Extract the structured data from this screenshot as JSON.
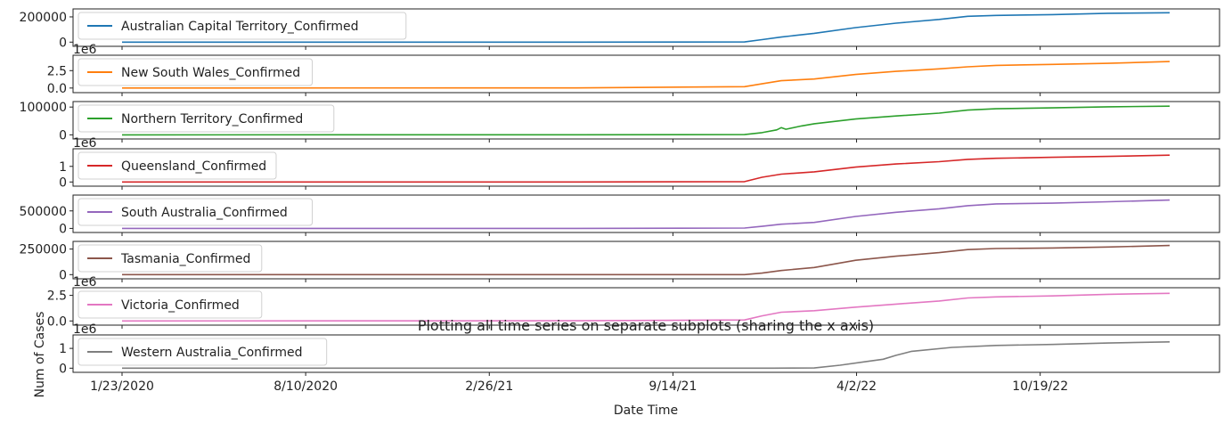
{
  "chart_data": {
    "type": "line",
    "title": "Plotting all time series on separate subplots (sharing the x axis)",
    "xlabel": "Date Time",
    "ylabel": "Num of Cases",
    "x_ticks": [
      "1/23/2020",
      "8/10/2020",
      "2/26/21",
      "9/14/21",
      "4/2/22",
      "10/19/22"
    ],
    "x_tick_dates": [
      "2020-01-23",
      "2020-08-10",
      "2021-02-26",
      "2021-09-14",
      "2022-04-02",
      "2022-10-19"
    ],
    "x_range": [
      "2020-01-23",
      "2023-03-09"
    ],
    "legend_position": "upper left",
    "series": [
      {
        "name": "Australian Capital Territory_Confirmed",
        "color": "#1f77b4",
        "offset_label": "",
        "ylim": [
          -5000,
          235000
        ],
        "y_ticks": [
          {
            "value": 0,
            "label": "0"
          },
          {
            "value": 200000,
            "label": "200000"
          }
        ],
        "dates": [
          "2020-01-23",
          "2021-06-01",
          "2021-12-01",
          "2021-12-20",
          "2022-01-10",
          "2022-02-15",
          "2022-04-01",
          "2022-05-15",
          "2022-07-01",
          "2022-08-01",
          "2022-09-01",
          "2022-11-01",
          "2023-01-01",
          "2023-03-09"
        ],
        "values": [
          0,
          60,
          1500,
          20000,
          40000,
          70000,
          115000,
          150000,
          180000,
          205000,
          212000,
          218000,
          229000,
          233000
        ]
      },
      {
        "name": "New South Wales_Confirmed",
        "color": "#ff7f0e",
        "offset_label": "1e6",
        "ylim": [
          -0.15,
          4.2
        ],
        "y_ticks": [
          {
            "value": 0,
            "label": "0.0"
          },
          {
            "value": 2.5,
            "label": "2.5"
          }
        ],
        "dates": [
          "2020-01-23",
          "2021-06-01",
          "2021-12-01",
          "2021-12-20",
          "2022-01-10",
          "2022-02-15",
          "2022-04-01",
          "2022-05-15",
          "2022-07-01",
          "2022-08-01",
          "2022-09-01",
          "2022-11-01",
          "2023-01-01",
          "2023-03-09"
        ],
        "values": [
          0,
          0.01,
          0.2,
          0.6,
          1.05,
          1.3,
          1.95,
          2.4,
          2.75,
          3.05,
          3.25,
          3.4,
          3.55,
          3.8
        ]
      },
      {
        "name": "Northern Territory_Confirmed",
        "color": "#2ca02c",
        "offset_label": "",
        "ylim": [
          -2000,
          107000
        ],
        "y_ticks": [
          {
            "value": 0,
            "label": "0"
          },
          {
            "value": 100000,
            "label": "100000"
          }
        ],
        "dates": [
          "2020-01-23",
          "2021-06-01",
          "2021-12-01",
          "2021-12-20",
          "2022-01-05",
          "2022-01-10",
          "2022-01-15",
          "2022-02-01",
          "2022-02-15",
          "2022-04-01",
          "2022-05-15",
          "2022-07-01",
          "2022-08-01",
          "2022-09-01",
          "2022-11-01",
          "2023-01-01",
          "2023-03-09"
        ],
        "values": [
          0,
          100,
          1000,
          8000,
          18000,
          26000,
          20000,
          32000,
          40000,
          57000,
          68000,
          78000,
          89000,
          94000,
          97000,
          101000,
          103000
        ]
      },
      {
        "name": "Queensland_Confirmed",
        "color": "#d62728",
        "offset_label": "1e6",
        "ylim": [
          -0.04,
          1.9
        ],
        "y_ticks": [
          {
            "value": 0,
            "label": "0"
          },
          {
            "value": 1,
            "label": "1"
          }
        ],
        "dates": [
          "2020-01-23",
          "2021-06-01",
          "2021-12-01",
          "2021-12-20",
          "2022-01-10",
          "2022-02-15",
          "2022-04-01",
          "2022-05-15",
          "2022-07-01",
          "2022-08-01",
          "2022-09-01",
          "2022-11-01",
          "2023-01-01",
          "2023-03-09"
        ],
        "values": [
          0,
          0.002,
          0.02,
          0.3,
          0.5,
          0.65,
          0.95,
          1.15,
          1.3,
          1.45,
          1.52,
          1.58,
          1.64,
          1.72
        ]
      },
      {
        "name": "South Australia_Confirmed",
        "color": "#9467bd",
        "offset_label": "",
        "ylim": [
          -15000,
          850000
        ],
        "y_ticks": [
          {
            "value": 0,
            "label": "0"
          },
          {
            "value": 500000,
            "label": "500000"
          }
        ],
        "dates": [
          "2020-01-23",
          "2021-06-01",
          "2021-12-01",
          "2021-12-20",
          "2022-01-10",
          "2022-02-15",
          "2022-04-01",
          "2022-05-15",
          "2022-07-01",
          "2022-08-01",
          "2022-09-01",
          "2022-11-01",
          "2023-01-01",
          "2023-03-09"
        ],
        "values": [
          0,
          500,
          10000,
          60000,
          120000,
          170000,
          340000,
          460000,
          560000,
          650000,
          700000,
          720000,
          760000,
          810000
        ]
      },
      {
        "name": "Tasmania_Confirmed",
        "color": "#8c564b",
        "offset_label": "",
        "ylim": [
          -6000,
          290000
        ],
        "y_ticks": [
          {
            "value": 0,
            "label": "0"
          },
          {
            "value": 250000,
            "label": "250000"
          }
        ],
        "dates": [
          "2020-01-23",
          "2021-06-01",
          "2021-12-01",
          "2021-12-20",
          "2022-01-10",
          "2022-02-15",
          "2022-04-01",
          "2022-05-15",
          "2022-07-01",
          "2022-08-01",
          "2022-09-01",
          "2022-11-01",
          "2023-01-01",
          "2023-03-09"
        ],
        "values": [
          0,
          20,
          300,
          15000,
          40000,
          70000,
          140000,
          180000,
          215000,
          245000,
          255000,
          260000,
          270000,
          285000
        ]
      },
      {
        "name": "Victoria_Confirmed",
        "color": "#e377c2",
        "offset_label": "1e6",
        "ylim": [
          -0.06,
          2.9
        ],
        "y_ticks": [
          {
            "value": 0,
            "label": "0.0"
          },
          {
            "value": 2.5,
            "label": "2.5"
          }
        ],
        "dates": [
          "2020-01-23",
          "2021-06-01",
          "2021-12-01",
          "2021-12-20",
          "2022-01-10",
          "2022-02-15",
          "2022-04-01",
          "2022-05-15",
          "2022-07-01",
          "2022-08-01",
          "2022-09-01",
          "2022-11-01",
          "2023-01-01",
          "2023-03-09"
        ],
        "values": [
          0,
          0.02,
          0.1,
          0.5,
          0.85,
          1.0,
          1.35,
          1.65,
          1.95,
          2.25,
          2.35,
          2.45,
          2.6,
          2.7
        ]
      },
      {
        "name": "Western Australia_Confirmed",
        "color": "#7f7f7f",
        "offset_label": "1e6",
        "ylim": [
          -0.03,
          1.5
        ],
        "y_ticks": [
          {
            "value": 0,
            "label": "0"
          },
          {
            "value": 1,
            "label": "1"
          }
        ],
        "dates": [
          "2020-01-23",
          "2021-06-01",
          "2022-01-01",
          "2022-02-15",
          "2022-03-15",
          "2022-04-15",
          "2022-05-01",
          "2022-05-15",
          "2022-06-01",
          "2022-07-15",
          "2022-09-01",
          "2022-11-01",
          "2023-01-01",
          "2023-03-09"
        ],
        "values": [
          0,
          0,
          0.003,
          0.01,
          0.15,
          0.35,
          0.45,
          0.65,
          0.85,
          1.05,
          1.15,
          1.2,
          1.27,
          1.33
        ]
      }
    ]
  }
}
